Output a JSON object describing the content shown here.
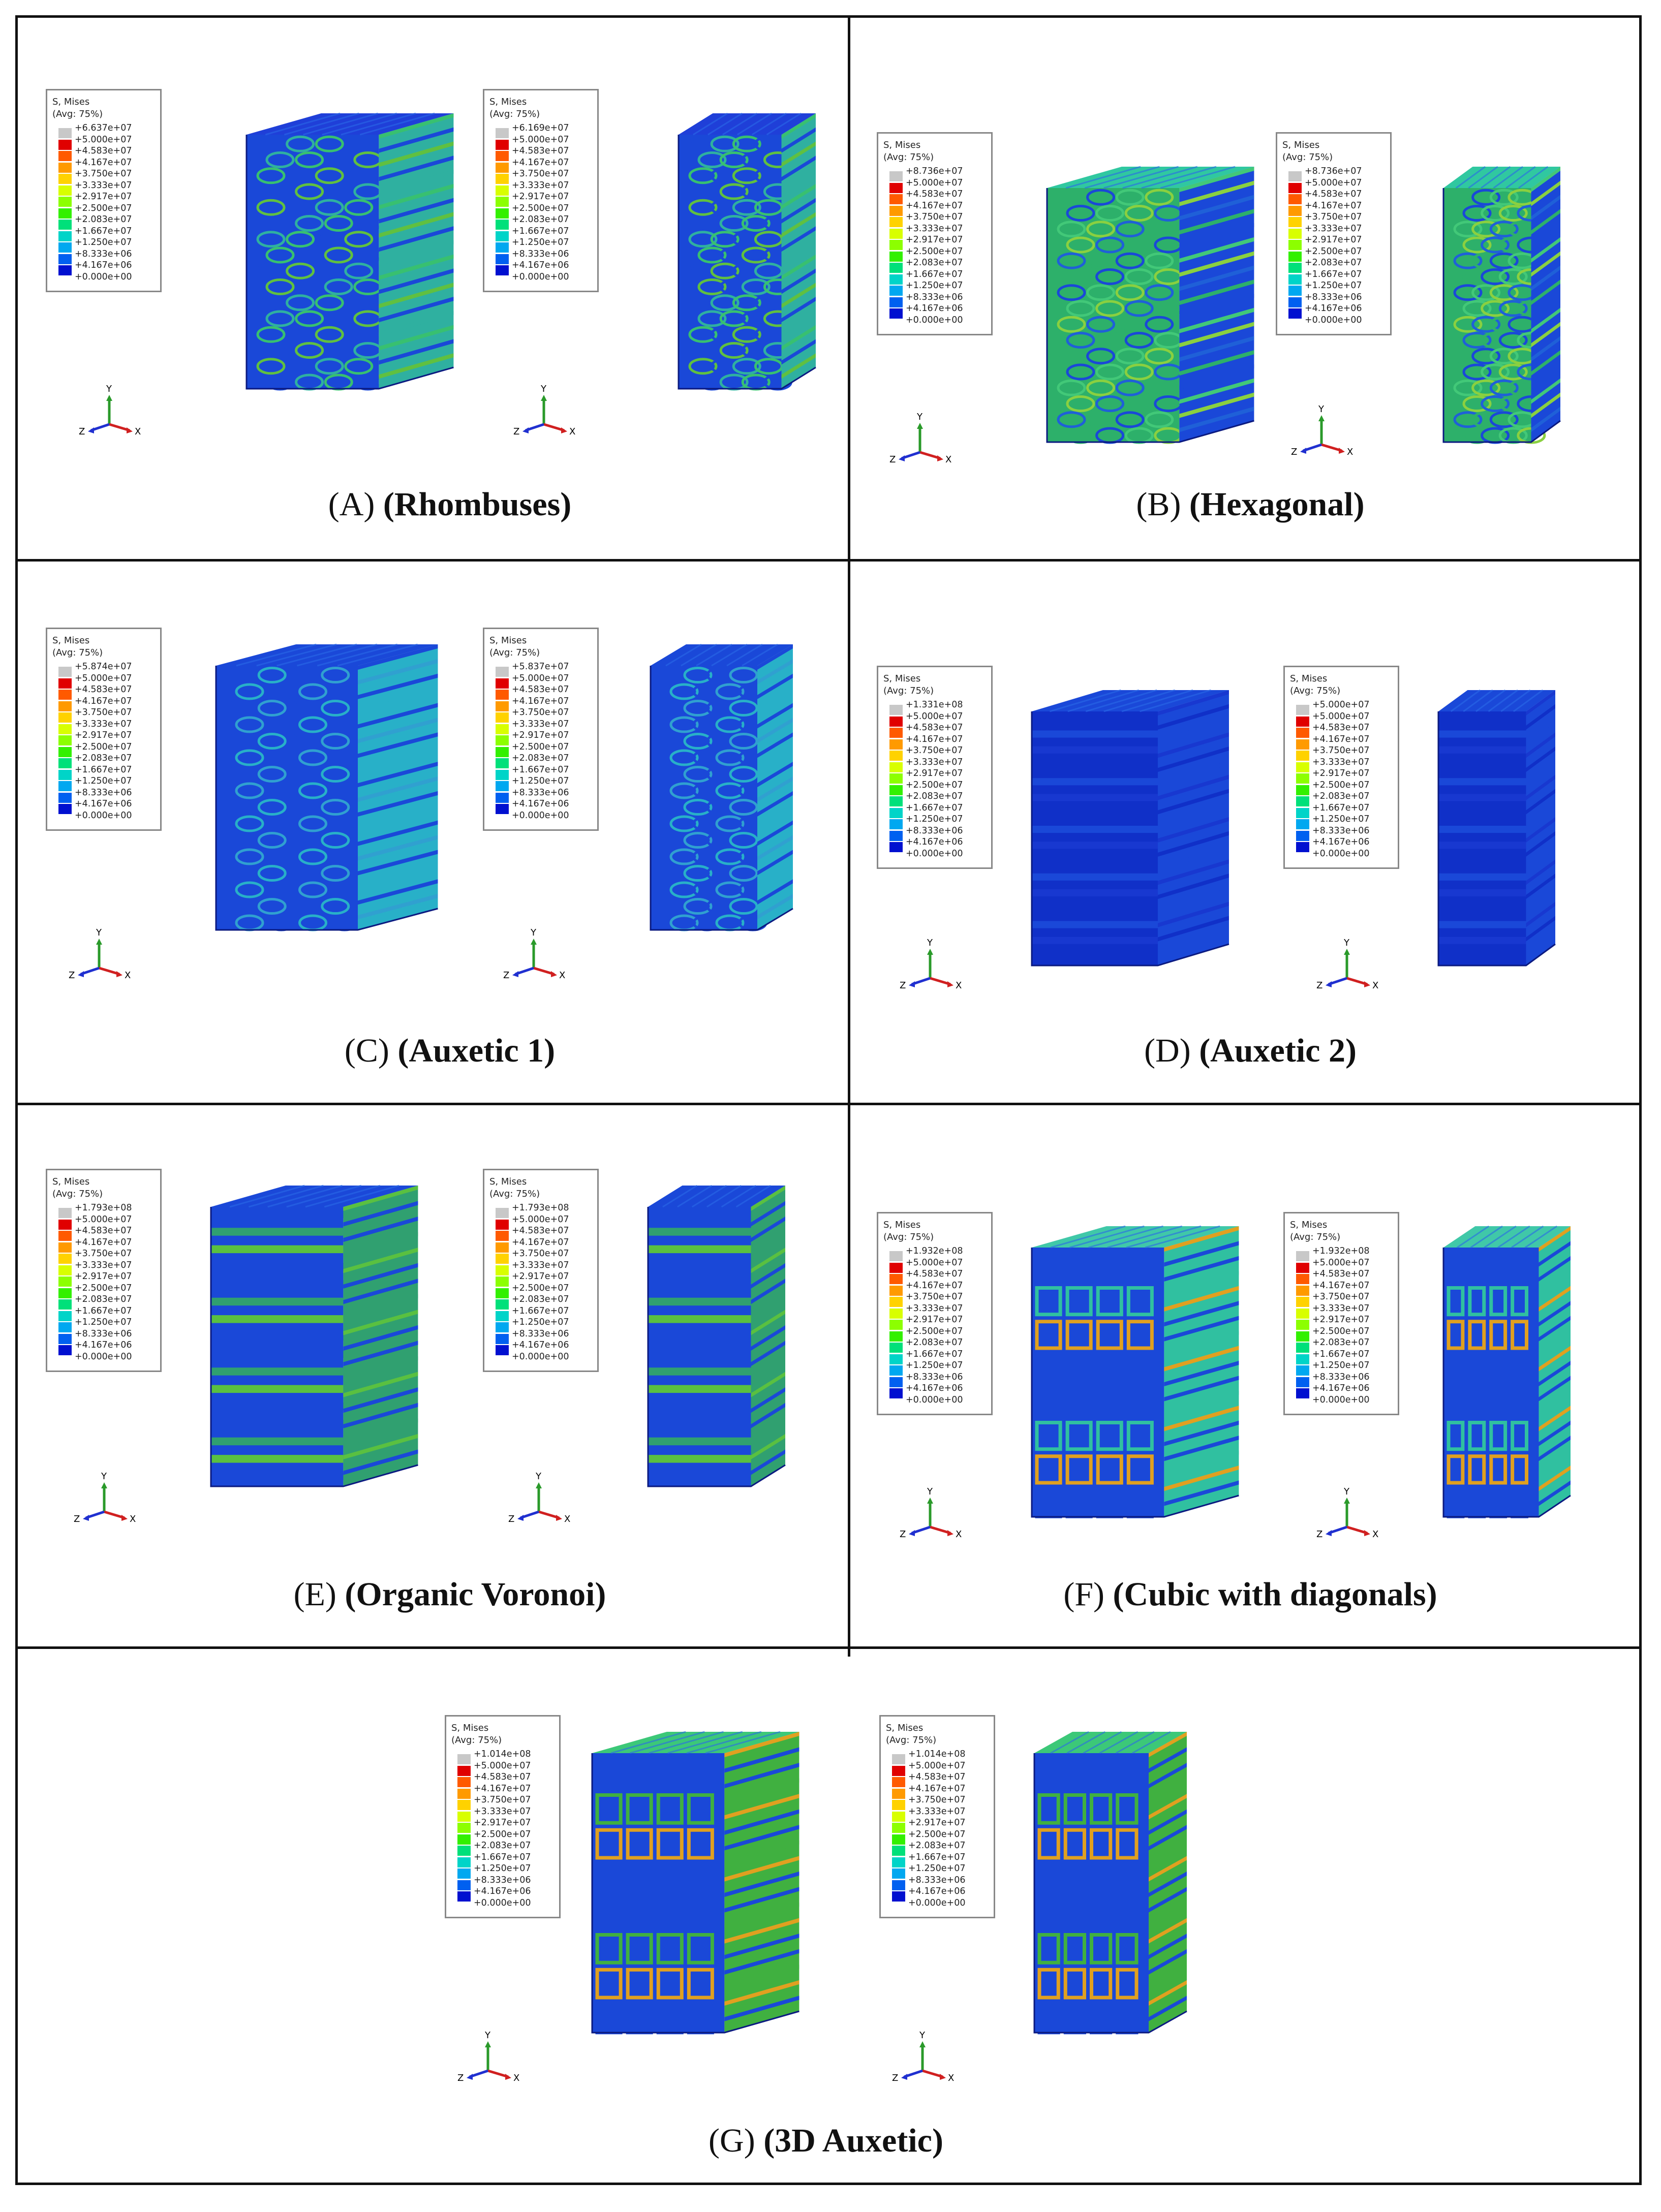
{
  "legend_title": "S, Mises",
  "legend_subtitle": "(Avg: 75%)",
  "scale_values": [
    "+5.000e+07",
    "+4.583e+07",
    "+4.167e+07",
    "+3.750e+07",
    "+3.333e+07",
    "+2.917e+07",
    "+2.500e+07",
    "+2.083e+07",
    "+1.667e+07",
    "+1.250e+07",
    "+8.333e+06",
    "+4.167e+06",
    "+0.000e+00"
  ],
  "scale_colors": [
    "#c8c8c8",
    "#e00000",
    "#ff5a00",
    "#ff9a00",
    "#ffd200",
    "#d8ff00",
    "#8cff00",
    "#33f000",
    "#00e07a",
    "#00d4c8",
    "#00a8f0",
    "#0060f0",
    "#0010d0"
  ],
  "axes": {
    "y": "Y",
    "z": "Z",
    "x": "X"
  },
  "panels": [
    {
      "letter": "A",
      "name": "(Rhombuses)",
      "max_left": "+6.637e+07",
      "max_right": "+6.169e+07"
    },
    {
      "letter": "B",
      "name": "(Hexagonal)",
      "max_left": "+8.736e+07",
      "max_right": "+8.736e+07"
    },
    {
      "letter": "C",
      "name": "(Auxetic 1)",
      "max_left": "+5.874e+07",
      "max_right": "+5.837e+07"
    },
    {
      "letter": "D",
      "name": "(Auxetic 2)",
      "max_left": "+1.331e+08",
      "max_right": "+5.000e+07"
    },
    {
      "letter": "E",
      "name": "(Organic Voronoi)",
      "max_left": "+1.793e+08",
      "max_right": "+1.793e+08"
    },
    {
      "letter": "F",
      "name": "(Cubic with diagonals)",
      "max_left": "+1.932e+08",
      "max_right": "+1.932e+08"
    },
    {
      "letter": "G",
      "name": "(3D Auxetic)",
      "max_left": "+1.014e+08",
      "max_right": "+1.014e+08"
    }
  ]
}
